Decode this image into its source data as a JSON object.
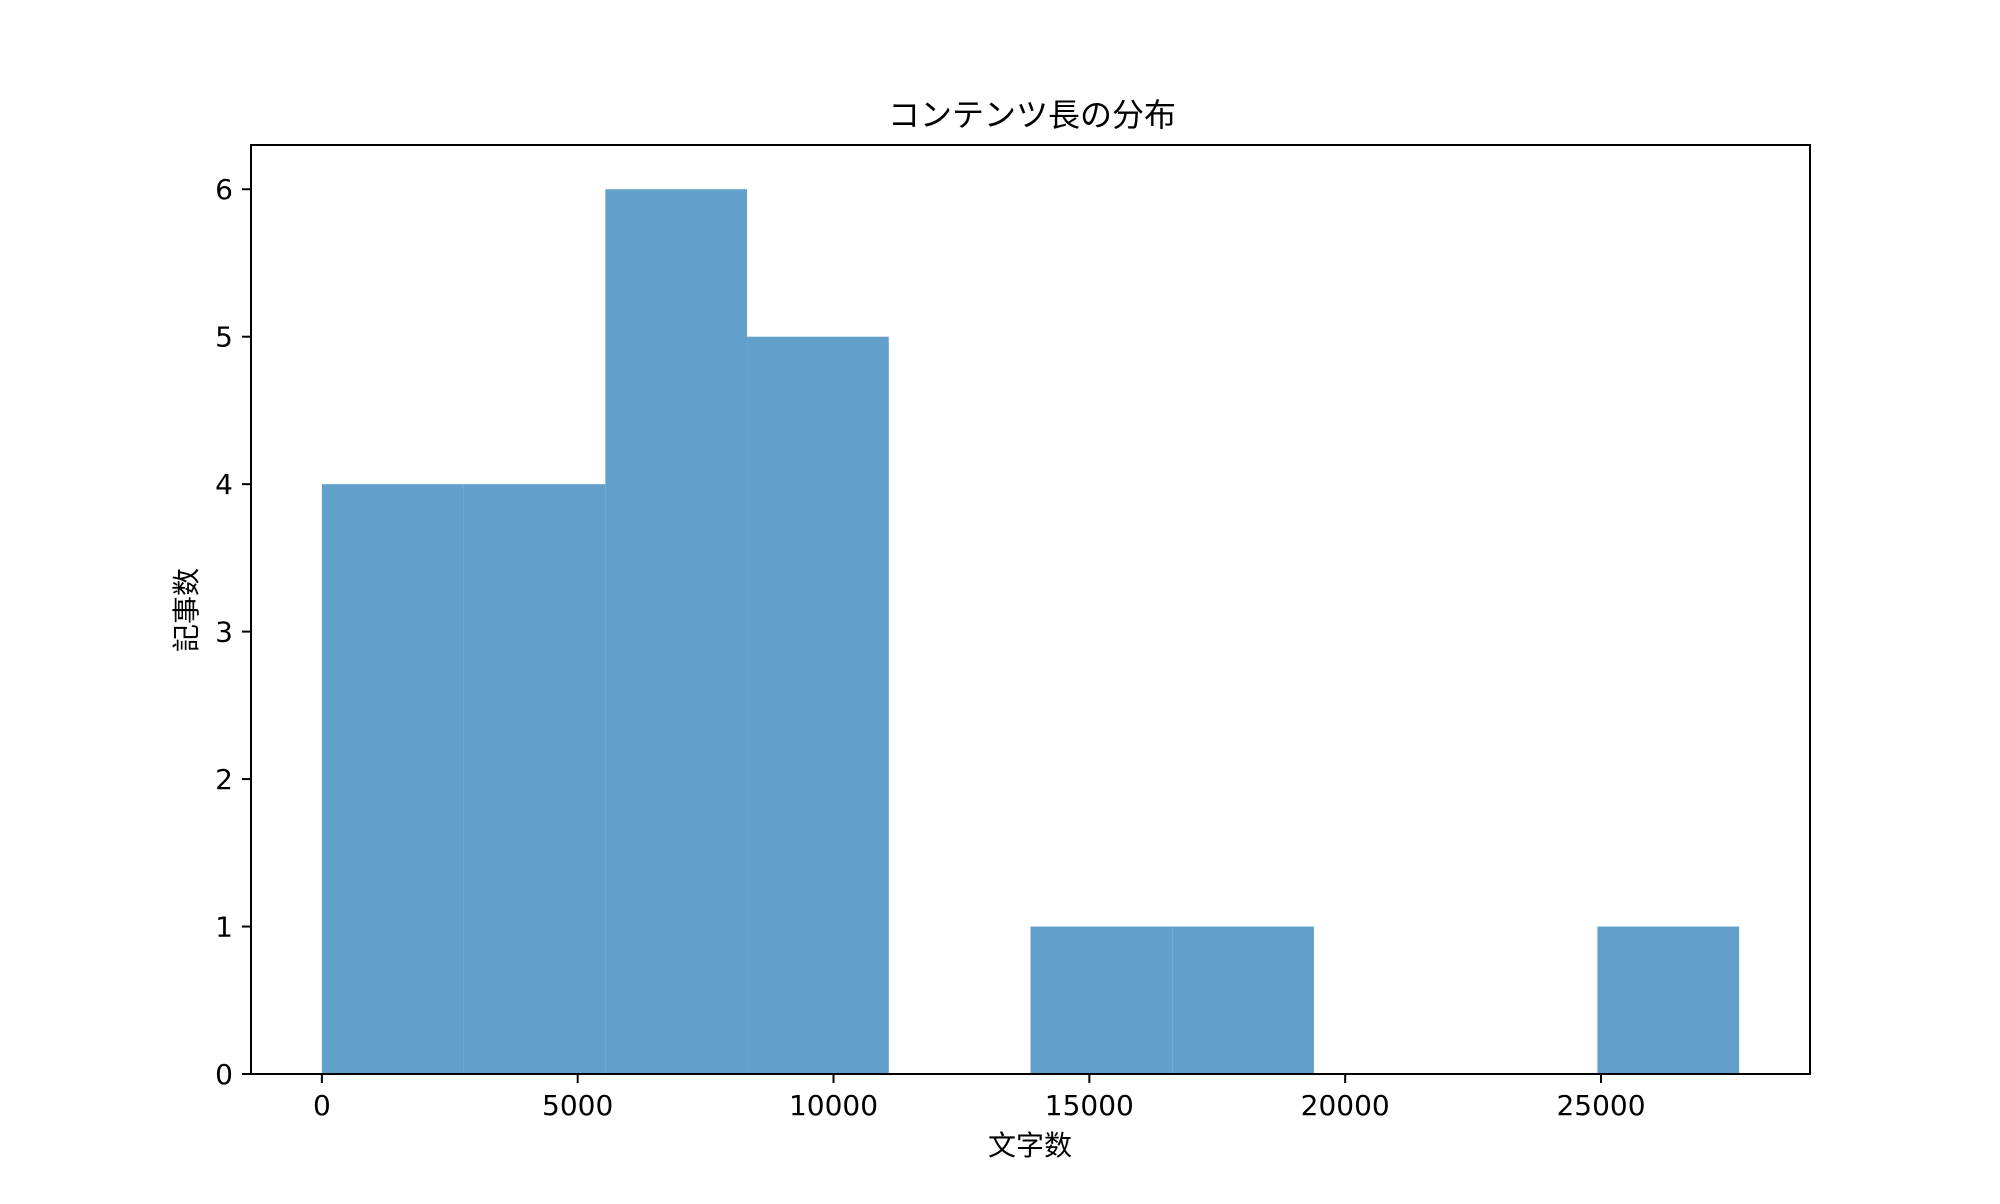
{
  "chart_data": {
    "type": "bar",
    "subtype": "histogram",
    "title": "コンテンツ長の分布",
    "xlabel": "文字数",
    "ylabel": "記事数",
    "bins": [
      {
        "start": 0,
        "end": 2770,
        "count": 4
      },
      {
        "start": 2770,
        "end": 5540,
        "count": 4
      },
      {
        "start": 5540,
        "end": 8310,
        "count": 6
      },
      {
        "start": 8310,
        "end": 11080,
        "count": 5
      },
      {
        "start": 11080,
        "end": 13850,
        "count": 0
      },
      {
        "start": 13850,
        "end": 16620,
        "count": 1
      },
      {
        "start": 16620,
        "end": 19390,
        "count": 1
      },
      {
        "start": 19390,
        "end": 22160,
        "count": 0
      },
      {
        "start": 22160,
        "end": 24930,
        "count": 0
      },
      {
        "start": 24930,
        "end": 27700,
        "count": 1
      }
    ],
    "xlim": [
      -1385,
      29085
    ],
    "ylim": [
      0,
      6.3
    ],
    "x_ticks": [
      {
        "value": 0,
        "label": "0"
      },
      {
        "value": 5000,
        "label": "5000"
      },
      {
        "value": 10000,
        "label": "10000"
      },
      {
        "value": 15000,
        "label": "15000"
      },
      {
        "value": 20000,
        "label": "20000"
      },
      {
        "value": 25000,
        "label": "25000"
      }
    ],
    "y_ticks": [
      {
        "value": 0,
        "label": "0"
      },
      {
        "value": 1,
        "label": "1"
      },
      {
        "value": 2,
        "label": "2"
      },
      {
        "value": 3,
        "label": "3"
      },
      {
        "value": 4,
        "label": "4"
      },
      {
        "value": 5,
        "label": "5"
      },
      {
        "value": 6,
        "label": "6"
      }
    ],
    "bar_color": "#629fcb",
    "grid": false,
    "legend": "none"
  }
}
